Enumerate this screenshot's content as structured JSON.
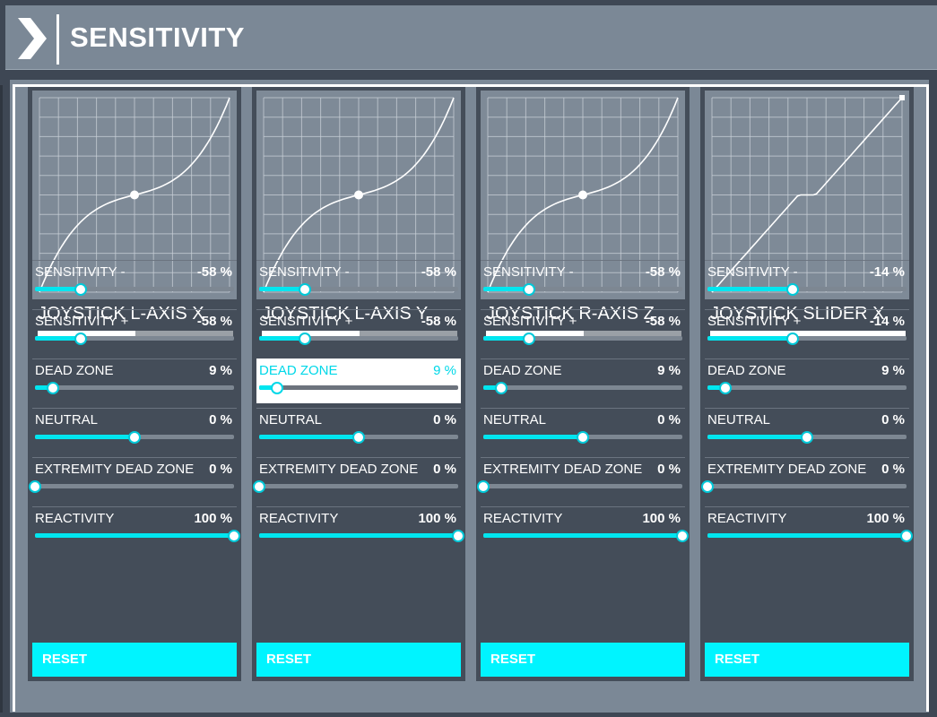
{
  "header": {
    "title": "SENSITIVITY"
  },
  "colors": {
    "accent": "#00f4ff",
    "panel": "#444d59",
    "graph_bg": "#7e8a97",
    "header_bg": "#7b8896"
  },
  "columns": [
    {
      "title": "JOYSTICK L-AXIS X",
      "curve": "cubic",
      "bar_fraction": 0.5,
      "rows": [
        {
          "label": "SENSITIVITY -",
          "value": "-58 %",
          "fraction": 0.23
        },
        {
          "label": "SENSITIVITY +",
          "value": "-58 %",
          "fraction": 0.23
        },
        {
          "label": "DEAD ZONE",
          "value": "9 %",
          "fraction": 0.09
        },
        {
          "label": "NEUTRAL",
          "value": "0 %",
          "fraction": 0.5
        },
        {
          "label": "EXTREMITY DEAD ZONE",
          "value": "0 %",
          "fraction": 0.0
        },
        {
          "label": "REACTIVITY",
          "value": "100 %",
          "fraction": 1.0
        }
      ],
      "reset_label": "RESET"
    },
    {
      "title": "JOYSTICK L-AXIS Y",
      "curve": "cubic",
      "bar_fraction": 0.5,
      "rows": [
        {
          "label": "SENSITIVITY -",
          "value": "-58 %",
          "fraction": 0.23
        },
        {
          "label": "SENSITIVITY +",
          "value": "-58 %",
          "fraction": 0.23
        },
        {
          "label": "DEAD ZONE",
          "value": "9 %",
          "fraction": 0.09,
          "highlighted": true
        },
        {
          "label": "NEUTRAL",
          "value": "0 %",
          "fraction": 0.5
        },
        {
          "label": "EXTREMITY DEAD ZONE",
          "value": "0 %",
          "fraction": 0.0
        },
        {
          "label": "REACTIVITY",
          "value": "100 %",
          "fraction": 1.0
        }
      ],
      "reset_label": "RESET"
    },
    {
      "title": "JOYSTICK R-AXIS Z",
      "curve": "cubic",
      "bar_fraction": 0.5,
      "rows": [
        {
          "label": "SENSITIVITY -",
          "value": "-58 %",
          "fraction": 0.23
        },
        {
          "label": "SENSITIVITY +",
          "value": "-58 %",
          "fraction": 0.23
        },
        {
          "label": "DEAD ZONE",
          "value": "9 %",
          "fraction": 0.09
        },
        {
          "label": "NEUTRAL",
          "value": "0 %",
          "fraction": 0.5
        },
        {
          "label": "EXTREMITY DEAD ZONE",
          "value": "0 %",
          "fraction": 0.0
        },
        {
          "label": "REACTIVITY",
          "value": "100 %",
          "fraction": 1.0
        }
      ],
      "reset_label": "RESET"
    },
    {
      "title": "JOYSTICK SLIDER X",
      "curve": "linear",
      "bar_fraction": 1.0,
      "rows": [
        {
          "label": "SENSITIVITY -",
          "value": "-14 %",
          "fraction": 0.43
        },
        {
          "label": "SENSITIVITY +",
          "value": "-14 %",
          "fraction": 0.43
        },
        {
          "label": "DEAD ZONE",
          "value": "9 %",
          "fraction": 0.09
        },
        {
          "label": "NEUTRAL",
          "value": "0 %",
          "fraction": 0.5
        },
        {
          "label": "EXTREMITY DEAD ZONE",
          "value": "0 %",
          "fraction": 0.0
        },
        {
          "label": "REACTIVITY",
          "value": "100 %",
          "fraction": 1.0
        }
      ],
      "reset_label": "RESET"
    }
  ]
}
